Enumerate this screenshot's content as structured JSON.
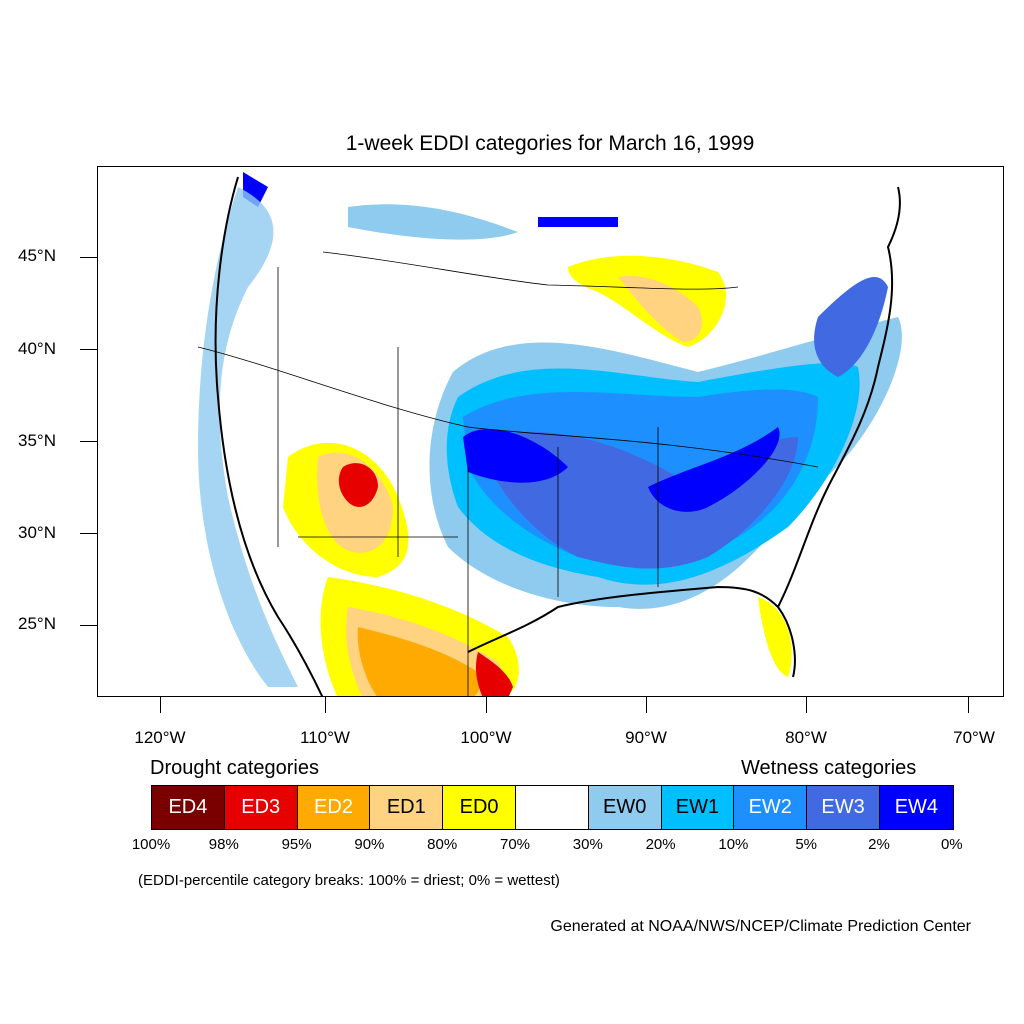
{
  "title": "1-week EDDI categories for March 16, 1999",
  "latitude_labels": [
    "45°N",
    "40°N",
    "35°N",
    "30°N",
    "25°N"
  ],
  "longitude_labels": [
    "120°W",
    "110°W",
    "100°W",
    "90°W",
    "80°W",
    "70°W"
  ],
  "legend": {
    "drought_heading": "Drought categories",
    "wetness_heading": "Wetness categories",
    "categories": [
      {
        "label": "ED4",
        "color": "#7a0000",
        "text_color": "#ffffff"
      },
      {
        "label": "ED3",
        "color": "#e60000",
        "text_color": "#ffffff"
      },
      {
        "label": "ED2",
        "color": "#ffaa00",
        "text_color": "#ffffff"
      },
      {
        "label": "ED1",
        "color": "#ffd37f",
        "text_color": "#000000"
      },
      {
        "label": "ED0",
        "color": "#ffff00",
        "text_color": "#000000"
      },
      {
        "label": "",
        "color": "#ffffff",
        "text_color": "#000000"
      },
      {
        "label": "EW0",
        "color": "#8ecbef",
        "text_color": "#000000"
      },
      {
        "label": "EW1",
        "color": "#00bfff",
        "text_color": "#000000"
      },
      {
        "label": "EW2",
        "color": "#1e8fff",
        "text_color": "#ffffff"
      },
      {
        "label": "EW3",
        "color": "#4169e1",
        "text_color": "#ffffff"
      },
      {
        "label": "EW4",
        "color": "#0000ff",
        "text_color": "#ffffff"
      }
    ],
    "breaks": [
      "100%",
      "98%",
      "95%",
      "90%",
      "80%",
      "70%",
      "30%",
      "20%",
      "10%",
      "5%",
      "2%",
      "0%"
    ]
  },
  "footnote": "(EDDI-percentile category breaks: 100% = driest; 0% = wettest)",
  "credit": "Generated at NOAA/NWS/NCEP/Climate Prediction Center"
}
